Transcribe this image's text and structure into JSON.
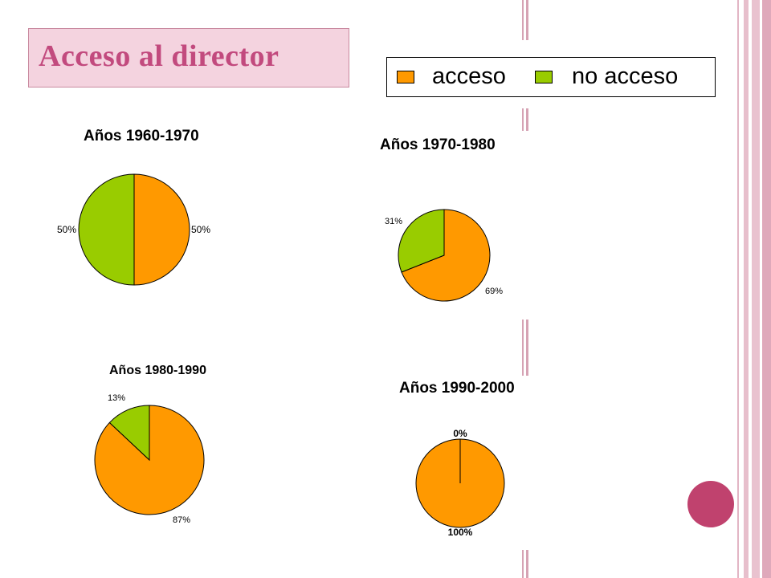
{
  "slide": {
    "title": "Acceso al director"
  },
  "legend": {
    "items": [
      {
        "label": "acceso",
        "color": "#ff9900"
      },
      {
        "label": "no acceso",
        "color": "#99cc00"
      }
    ]
  },
  "colors": {
    "acceso": "#ff9900",
    "no_acceso": "#99cc00",
    "accent": "#c0426e",
    "title_bg": "#f4d3df"
  },
  "chart_data": [
    {
      "type": "pie",
      "title": "Años 1960-1970",
      "categories": [
        "acceso",
        "no acceso"
      ],
      "values": [
        50,
        50
      ],
      "labels": [
        "50%",
        "50%"
      ]
    },
    {
      "type": "pie",
      "title": "Años 1970-1980",
      "categories": [
        "acceso",
        "no acceso"
      ],
      "values": [
        69,
        31
      ],
      "labels": [
        "69%",
        "31%"
      ]
    },
    {
      "type": "pie",
      "title": "Años 1980-1990",
      "categories": [
        "acceso",
        "no acceso"
      ],
      "values": [
        87,
        13
      ],
      "labels": [
        "87%",
        "13%"
      ]
    },
    {
      "type": "pie",
      "title": "Años 1990-2000",
      "categories": [
        "acceso",
        "no acceso"
      ],
      "values": [
        100,
        0
      ],
      "labels": [
        "100%",
        "0%"
      ]
    }
  ]
}
